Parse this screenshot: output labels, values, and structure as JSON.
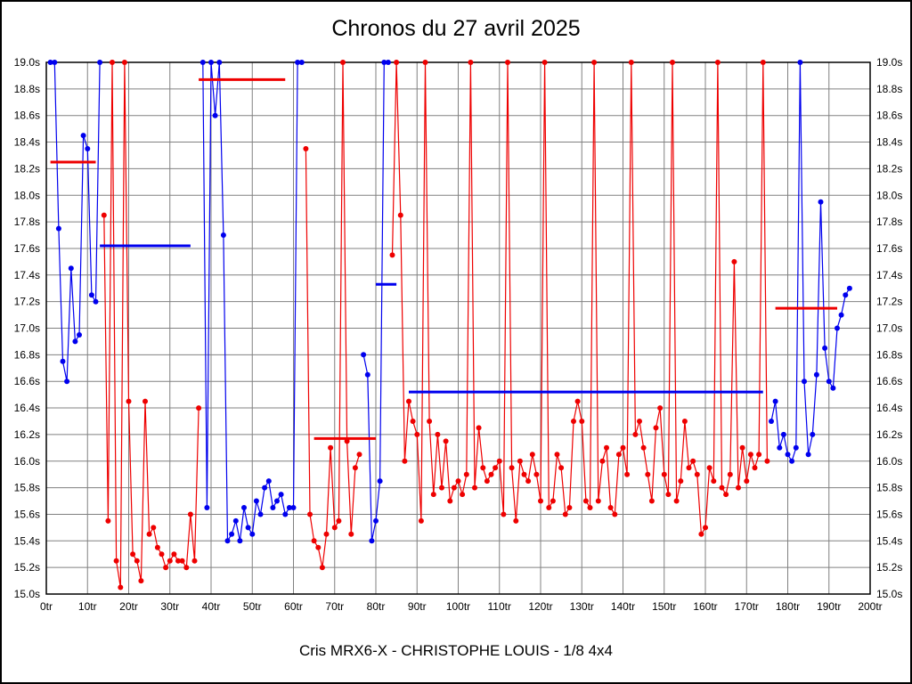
{
  "title": "Chronos du 27 avril 2025",
  "caption": "Cris MRX6-X - CHRISTOPHE LOUIS - 1/8 4x4",
  "chart_data": {
    "type": "line",
    "title": "Chronos du 27 avril 2025",
    "subtitle": "Cris MRX6-X - CHRISTOPHE LOUIS - 1/8 4x4",
    "xlabel": "",
    "ylabel": "",
    "x_unit": "tr",
    "y_unit": "s",
    "xlim": [
      0,
      200
    ],
    "ylim": [
      15.0,
      19.0
    ],
    "x_tick_step": 10,
    "y_tick_step": 0.2,
    "grid": true,
    "grid_color": "#808080",
    "legend": "none",
    "x_tick_labels": [
      "0tr",
      "10tr",
      "20tr",
      "30tr",
      "40tr",
      "50tr",
      "60tr",
      "70tr",
      "80tr",
      "90tr",
      "100tr",
      "110tr",
      "120tr",
      "130tr",
      "140tr",
      "150tr",
      "160tr",
      "170tr",
      "180tr",
      "190tr",
      "200tr"
    ],
    "y_tick_labels": [
      "19.0s",
      "18.8s",
      "18.6s",
      "18.4s",
      "18.2s",
      "18.0s",
      "17.8s",
      "17.6s",
      "17.4s",
      "17.2s",
      "17.0s",
      "16.8s",
      "16.6s",
      "16.4s",
      "16.2s",
      "16.0s",
      "15.8s",
      "15.6s",
      "15.4s",
      "15.2s",
      "15.0s"
    ],
    "series": [
      {
        "name": "run-blue",
        "color": "#0000ee",
        "runs": [
          [
            [
              1,
              19
            ],
            [
              2,
              19
            ],
            [
              3,
              17.75
            ],
            [
              4,
              16.75
            ],
            [
              5,
              16.6
            ],
            [
              6,
              17.45
            ],
            [
              7,
              16.9
            ],
            [
              8,
              16.95
            ],
            [
              9,
              18.45
            ],
            [
              10,
              18.35
            ],
            [
              11,
              17.25
            ],
            [
              12,
              17.2
            ],
            [
              13,
              19
            ]
          ],
          [
            [
              38,
              19
            ],
            [
              39,
              15.65
            ],
            [
              40,
              19
            ],
            [
              41,
              18.6
            ],
            [
              42,
              19
            ],
            [
              43,
              17.7
            ],
            [
              44,
              15.4
            ],
            [
              45,
              15.45
            ],
            [
              46,
              15.55
            ],
            [
              47,
              15.4
            ],
            [
              48,
              15.65
            ],
            [
              49,
              15.5
            ],
            [
              50,
              15.45
            ],
            [
              51,
              15.7
            ],
            [
              52,
              15.6
            ],
            [
              53,
              15.8
            ],
            [
              54,
              15.85
            ],
            [
              55,
              15.65
            ],
            [
              56,
              15.7
            ],
            [
              57,
              15.75
            ],
            [
              58,
              15.6
            ],
            [
              59,
              15.65
            ],
            [
              60,
              15.65
            ],
            [
              61,
              19
            ],
            [
              62,
              19
            ]
          ],
          [
            [
              77,
              16.8
            ],
            [
              78,
              16.65
            ],
            [
              79,
              15.4
            ],
            [
              80,
              15.55
            ],
            [
              81,
              15.85
            ],
            [
              82,
              19
            ],
            [
              83,
              19
            ]
          ],
          [
            [
              176,
              16.3
            ],
            [
              177,
              16.45
            ],
            [
              178,
              16.1
            ],
            [
              179,
              16.2
            ],
            [
              180,
              16.05
            ],
            [
              181,
              16.0
            ],
            [
              182,
              16.1
            ],
            [
              183,
              19
            ],
            [
              184,
              16.6
            ],
            [
              185,
              16.05
            ],
            [
              186,
              16.2
            ],
            [
              187,
              16.65
            ],
            [
              188,
              17.95
            ],
            [
              189,
              16.85
            ],
            [
              190,
              16.6
            ],
            [
              191,
              16.55
            ],
            [
              192,
              17.0
            ],
            [
              193,
              17.1
            ],
            [
              194,
              17.25
            ],
            [
              195,
              17.3
            ]
          ]
        ]
      },
      {
        "name": "run-red",
        "color": "#ee0000",
        "runs": [
          [
            [
              14,
              17.85
            ],
            [
              15,
              15.55
            ],
            [
              16,
              19
            ],
            [
              17,
              15.25
            ],
            [
              18,
              15.05
            ],
            [
              19,
              19
            ],
            [
              20,
              16.45
            ],
            [
              21,
              15.3
            ],
            [
              22,
              15.25
            ],
            [
              23,
              15.1
            ],
            [
              24,
              16.45
            ],
            [
              25,
              15.45
            ],
            [
              26,
              15.5
            ],
            [
              27,
              15.35
            ],
            [
              28,
              15.3
            ],
            [
              29,
              15.2
            ],
            [
              30,
              15.25
            ],
            [
              31,
              15.3
            ],
            [
              32,
              15.25
            ],
            [
              33,
              15.25
            ],
            [
              34,
              15.2
            ],
            [
              35,
              15.6
            ],
            [
              36,
              15.25
            ],
            [
              37,
              16.4
            ]
          ],
          [
            [
              63,
              18.35
            ],
            [
              64,
              15.6
            ],
            [
              65,
              15.4
            ],
            [
              66,
              15.35
            ],
            [
              67,
              15.2
            ],
            [
              68,
              15.45
            ],
            [
              69,
              16.1
            ],
            [
              70,
              15.5
            ],
            [
              71,
              15.55
            ],
            [
              72,
              19
            ],
            [
              73,
              16.15
            ],
            [
              74,
              15.45
            ],
            [
              75,
              15.95
            ],
            [
              76,
              16.05
            ]
          ],
          [
            [
              84,
              17.55
            ],
            [
              85,
              19
            ],
            [
              86,
              17.85
            ],
            [
              87,
              16.0
            ],
            [
              88,
              16.45
            ],
            [
              89,
              16.3
            ],
            [
              90,
              16.2
            ],
            [
              91,
              15.55
            ],
            [
              92,
              19
            ],
            [
              93,
              16.3
            ],
            [
              94,
              15.75
            ],
            [
              95,
              16.2
            ],
            [
              96,
              15.8
            ],
            [
              97,
              16.15
            ],
            [
              98,
              15.7
            ],
            [
              99,
              15.8
            ],
            [
              100,
              15.85
            ],
            [
              101,
              15.75
            ],
            [
              102,
              15.9
            ],
            [
              103,
              19
            ],
            [
              104,
              15.8
            ],
            [
              105,
              16.25
            ],
            [
              106,
              15.95
            ],
            [
              107,
              15.85
            ],
            [
              108,
              15.9
            ],
            [
              109,
              15.95
            ],
            [
              110,
              16.0
            ],
            [
              111,
              15.6
            ],
            [
              112,
              19
            ],
            [
              113,
              15.95
            ],
            [
              114,
              15.55
            ],
            [
              115,
              16.0
            ],
            [
              116,
              15.9
            ],
            [
              117,
              15.85
            ],
            [
              118,
              16.05
            ],
            [
              119,
              15.9
            ],
            [
              120,
              15.7
            ],
            [
              121,
              19
            ],
            [
              122,
              15.65
            ],
            [
              123,
              15.7
            ],
            [
              124,
              16.05
            ],
            [
              125,
              15.95
            ],
            [
              126,
              15.6
            ],
            [
              127,
              15.65
            ],
            [
              128,
              16.3
            ],
            [
              129,
              16.45
            ],
            [
              130,
              16.3
            ],
            [
              131,
              15.7
            ],
            [
              132,
              15.65
            ],
            [
              133,
              19
            ],
            [
              134,
              15.7
            ],
            [
              135,
              16.0
            ],
            [
              136,
              16.1
            ],
            [
              137,
              15.65
            ],
            [
              138,
              15.6
            ],
            [
              139,
              16.05
            ],
            [
              140,
              16.1
            ],
            [
              141,
              15.9
            ],
            [
              142,
              19
            ],
            [
              143,
              16.2
            ],
            [
              144,
              16.3
            ],
            [
              145,
              16.1
            ],
            [
              146,
              15.9
            ],
            [
              147,
              15.7
            ],
            [
              148,
              16.25
            ],
            [
              149,
              16.4
            ],
            [
              150,
              15.9
            ],
            [
              151,
              15.75
            ],
            [
              152,
              19
            ],
            [
              153,
              15.7
            ],
            [
              154,
              15.85
            ],
            [
              155,
              16.3
            ],
            [
              156,
              15.95
            ],
            [
              157,
              16.0
            ],
            [
              158,
              15.9
            ],
            [
              159,
              15.45
            ],
            [
              160,
              15.5
            ],
            [
              161,
              15.95
            ],
            [
              162,
              15.85
            ],
            [
              163,
              19
            ],
            [
              164,
              15.8
            ],
            [
              165,
              15.75
            ],
            [
              166,
              15.9
            ],
            [
              167,
              17.5
            ],
            [
              168,
              15.8
            ],
            [
              169,
              16.1
            ],
            [
              170,
              15.85
            ],
            [
              171,
              16.05
            ],
            [
              172,
              15.95
            ],
            [
              173,
              16.05
            ],
            [
              174,
              19
            ],
            [
              175,
              16.0
            ]
          ]
        ]
      }
    ],
    "average_lines": [
      {
        "color": "#ee0000",
        "y": 18.25,
        "x1": 1,
        "x2": 12
      },
      {
        "color": "#0000ee",
        "y": 17.62,
        "x1": 13,
        "x2": 35
      },
      {
        "color": "#ee0000",
        "y": 18.87,
        "x1": 37,
        "x2": 58
      },
      {
        "color": "#ee0000",
        "y": 16.17,
        "x1": 65,
        "x2": 80
      },
      {
        "color": "#0000ee",
        "y": 17.33,
        "x1": 80,
        "x2": 85
      },
      {
        "color": "#0000ee",
        "y": 16.52,
        "x1": 88,
        "x2": 174
      },
      {
        "color": "#ee0000",
        "y": 17.15,
        "x1": 177,
        "x2": 192
      }
    ]
  }
}
